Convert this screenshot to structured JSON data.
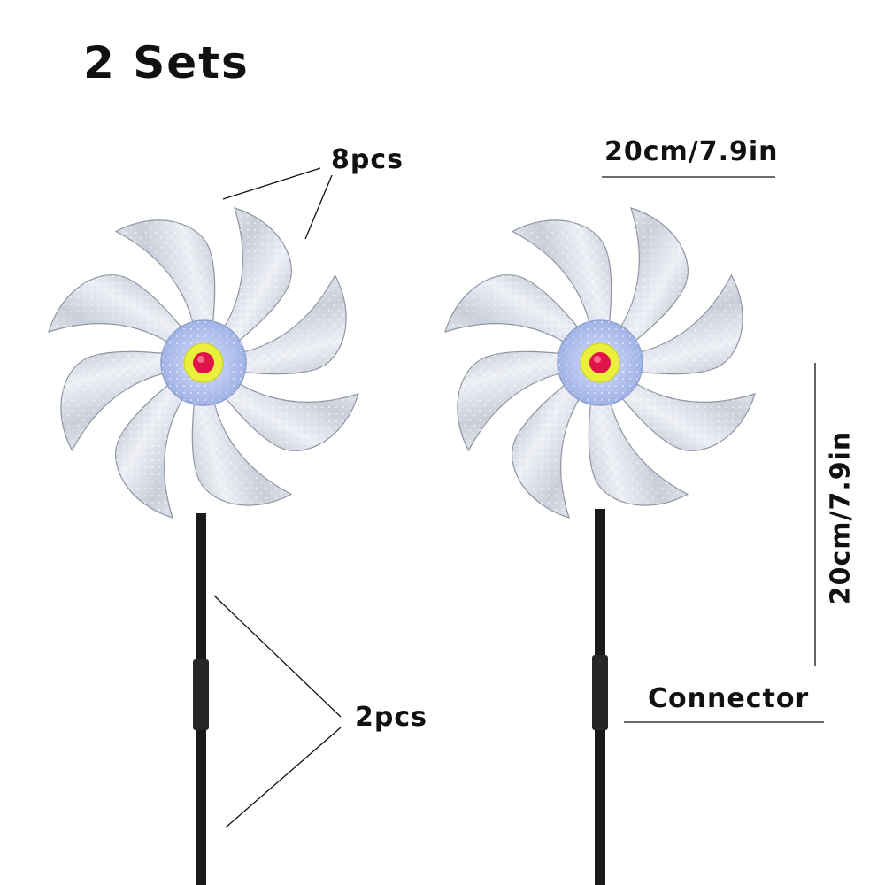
{
  "title": "2 Sets",
  "labels": {
    "blades_count": "8pcs",
    "width_dimension": "20cm/7.9in",
    "height_dimension": "20cm/7.9in",
    "stakes_count": "2pcs",
    "connector": "Connector"
  },
  "colors": {
    "background": "#ffffff",
    "text": "#111111",
    "stake": "#1a1a1a",
    "blade_silver": "#d6dbe4",
    "center_blue": "#b9c8ee",
    "center_yellow": "#e9ef3a",
    "center_red": "#e0144a"
  }
}
